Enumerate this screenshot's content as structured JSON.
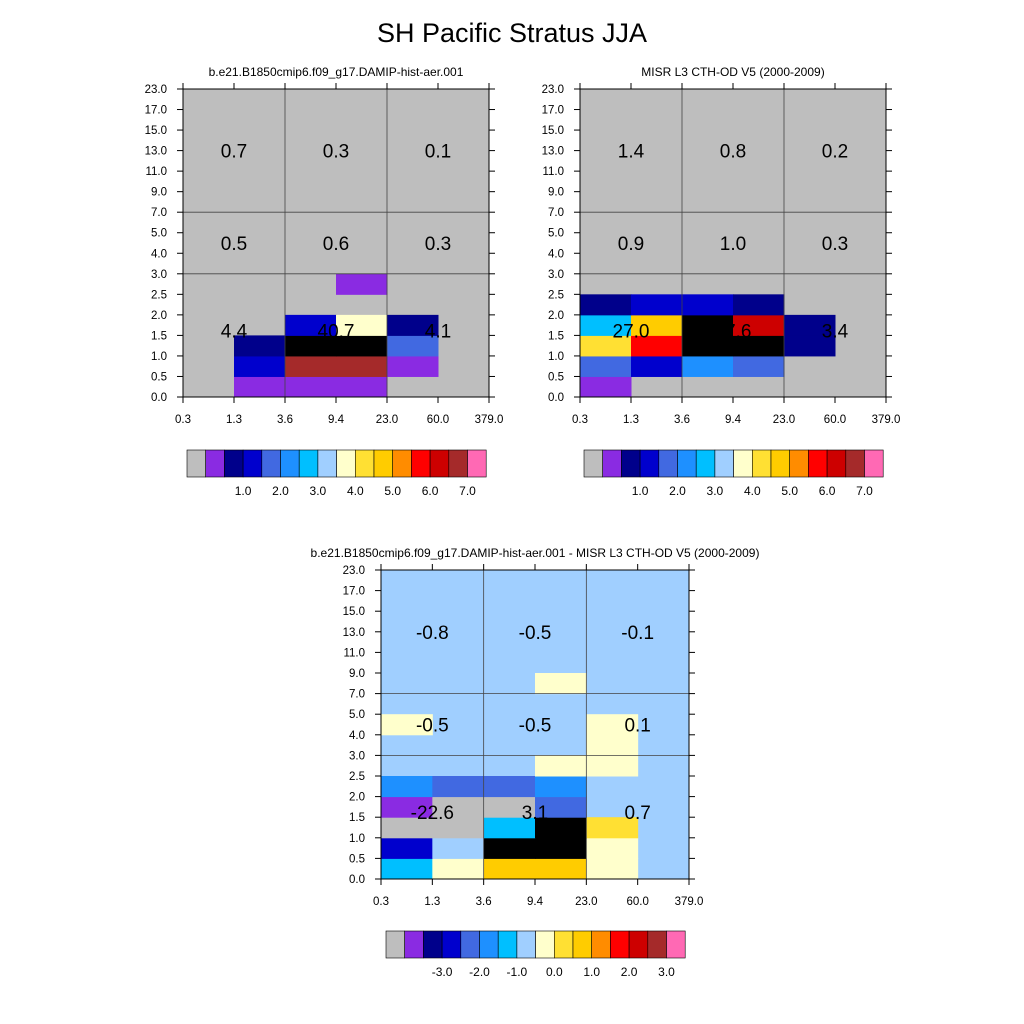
{
  "title": "SH Pacific Stratus JJA",
  "chart_data": [
    {
      "type": "heatmap",
      "title": "b.e21.B1850cmip6.f09_g17.DAMIP-hist-aer.001",
      "x_ticks": [
        "0.3",
        "1.3",
        "3.6",
        "9.4",
        "23.0",
        "60.0",
        "379.0"
      ],
      "y_ticks": [
        "0.0",
        "0.5",
        "1.0",
        "1.5",
        "2.0",
        "2.5",
        "3.0",
        "4.0",
        "5.0",
        "7.0",
        "9.0",
        "11.0",
        "13.0",
        "15.0",
        "17.0",
        "23.0"
      ],
      "cells": [
        {
          "x": 1,
          "y": 0,
          "c": 1
        },
        {
          "x": 2,
          "y": 0,
          "c": 1
        },
        {
          "x": 3,
          "y": 0,
          "c": 1
        },
        {
          "x": 1,
          "y": 1,
          "c": 3
        },
        {
          "x": 2,
          "y": 1,
          "c": 14
        },
        {
          "x": 3,
          "y": 1,
          "c": 14
        },
        {
          "x": 4,
          "y": 1,
          "c": 1
        },
        {
          "x": 1,
          "y": 2,
          "c": 2
        },
        {
          "x": 2,
          "y": 2,
          "c": 18
        },
        {
          "x": 3,
          "y": 2,
          "c": 18
        },
        {
          "x": 4,
          "y": 2,
          "c": 4
        },
        {
          "x": 2,
          "y": 3,
          "c": 3
        },
        {
          "x": 3,
          "y": 3,
          "c": 8
        },
        {
          "x": 4,
          "y": 3,
          "c": 2
        },
        {
          "x": 3,
          "y": 5,
          "c": 1
        }
      ],
      "box_values": [
        [
          "4.4",
          "40.7",
          "4.1"
        ],
        [
          "0.5",
          "0.6",
          "0.3"
        ],
        [
          "0.7",
          "0.3",
          "0.1"
        ]
      ]
    },
    {
      "type": "heatmap",
      "title": "MISR L3 CTH-OD V5 (2000-2009)",
      "x_ticks": [
        "0.3",
        "1.3",
        "3.6",
        "9.4",
        "23.0",
        "60.0",
        "379.0"
      ],
      "y_ticks": [
        "0.0",
        "0.5",
        "1.0",
        "1.5",
        "2.0",
        "2.5",
        "3.0",
        "4.0",
        "5.0",
        "7.0",
        "9.0",
        "11.0",
        "13.0",
        "15.0",
        "17.0",
        "23.0"
      ],
      "cells": [
        {
          "x": 0,
          "y": 0,
          "c": 1
        },
        {
          "x": 0,
          "y": 1,
          "c": 4
        },
        {
          "x": 1,
          "y": 1,
          "c": 3
        },
        {
          "x": 2,
          "y": 1,
          "c": 5
        },
        {
          "x": 3,
          "y": 1,
          "c": 4
        },
        {
          "x": 0,
          "y": 2,
          "c": 9
        },
        {
          "x": 1,
          "y": 2,
          "c": 12
        },
        {
          "x": 2,
          "y": 2,
          "c": 18
        },
        {
          "x": 3,
          "y": 2,
          "c": 17
        },
        {
          "x": 4,
          "y": 2,
          "c": 2
        },
        {
          "x": 0,
          "y": 3,
          "c": 6
        },
        {
          "x": 1,
          "y": 3,
          "c": 10
        },
        {
          "x": 2,
          "y": 3,
          "c": 17
        },
        {
          "x": 3,
          "y": 3,
          "c": 13
        },
        {
          "x": 4,
          "y": 3,
          "c": 2
        },
        {
          "x": 0,
          "y": 4,
          "c": 2
        },
        {
          "x": 1,
          "y": 4,
          "c": 3
        },
        {
          "x": 2,
          "y": 4,
          "c": 3
        },
        {
          "x": 3,
          "y": 4,
          "c": 2
        }
      ],
      "box_values": [
        [
          "27.0",
          "37.6",
          "3.4"
        ],
        [
          "0.9",
          "1.0",
          "0.3"
        ],
        [
          "1.4",
          "0.8",
          "0.2"
        ]
      ]
    },
    {
      "type": "heatmap",
      "title": "b.e21.B1850cmip6.f09_g17.DAMIP-hist-aer.001 - MISR L3 CTH-OD V5 (2000-2009)",
      "x_ticks": [
        "0.3",
        "1.3",
        "3.6",
        "9.4",
        "23.0",
        "60.0",
        "379.0"
      ],
      "y_ticks": [
        "0.0",
        "0.5",
        "1.0",
        "1.5",
        "2.0",
        "2.5",
        "3.0",
        "4.0",
        "5.0",
        "7.0",
        "9.0",
        "11.0",
        "13.0",
        "15.0",
        "17.0",
        "23.0"
      ],
      "cells": [
        {
          "x": 0,
          "y": 0,
          "c": 6
        },
        {
          "x": 1,
          "y": 0,
          "c": 8
        },
        {
          "x": 2,
          "y": 0,
          "c": 10
        },
        {
          "x": 3,
          "y": 0,
          "c": 10
        },
        {
          "x": 4,
          "y": 0,
          "c": 8
        },
        {
          "x": 0,
          "y": 1,
          "c": 3
        },
        {
          "x": 1,
          "y": 1,
          "c": 7
        },
        {
          "x": 2,
          "y": 1,
          "c": 18
        },
        {
          "x": 3,
          "y": 1,
          "c": 18
        },
        {
          "x": 4,
          "y": 1,
          "c": 8
        },
        {
          "x": 0,
          "y": 2,
          "c": 0
        },
        {
          "x": 1,
          "y": 2,
          "c": 0
        },
        {
          "x": 2,
          "y": 2,
          "c": 6
        },
        {
          "x": 3,
          "y": 2,
          "c": 18
        },
        {
          "x": 4,
          "y": 2,
          "c": 9
        },
        {
          "x": 0,
          "y": 3,
          "c": 1
        },
        {
          "x": 1,
          "y": 3,
          "c": 0
        },
        {
          "x": 2,
          "y": 3,
          "c": 0
        },
        {
          "x": 3,
          "y": 3,
          "c": 4
        },
        {
          "x": 0,
          "y": 4,
          "c": 5
        },
        {
          "x": 1,
          "y": 4,
          "c": 4
        },
        {
          "x": 2,
          "y": 4,
          "c": 4
        },
        {
          "x": 3,
          "y": 4,
          "c": 5
        },
        {
          "x": 3,
          "y": 5,
          "c": 8
        },
        {
          "x": 4,
          "y": 5,
          "c": 8
        },
        {
          "x": 4,
          "y": 6,
          "c": 8
        },
        {
          "x": 0,
          "y": 7,
          "c": 8
        },
        {
          "x": 4,
          "y": 7,
          "c": 8
        },
        {
          "x": 3,
          "y": 9,
          "c": 8
        }
      ],
      "box_values": [
        [
          "-22.6",
          "3.1",
          "0.7"
        ],
        [
          "-0.5",
          "-0.5",
          "0.1"
        ],
        [
          "-0.8",
          "-0.5",
          "-0.1"
        ]
      ]
    }
  ],
  "background_colors": [
    "#bebebe",
    "#bebebe",
    "#a0cfff"
  ],
  "colorbar": {
    "colors": [
      "#bebebe",
      "#8a2be2",
      "#00008b",
      "#0000cd",
      "#4169e1",
      "#1e90ff",
      "#00bfff",
      "#a0cfff",
      "#ffffcc",
      "#ffe033",
      "#ffcc00",
      "#ff8c00",
      "#ff0000",
      "#cd0000",
      "#a52a2a",
      "#ff69b4"
    ],
    "labels_top": [
      "1.0",
      "2.0",
      "3.0",
      "4.0",
      "5.0",
      "6.0",
      "7.0"
    ],
    "labels_diff": [
      "-3.0",
      "-2.0",
      "-1.0",
      "0.0",
      "1.0",
      "2.0",
      "3.0"
    ]
  }
}
